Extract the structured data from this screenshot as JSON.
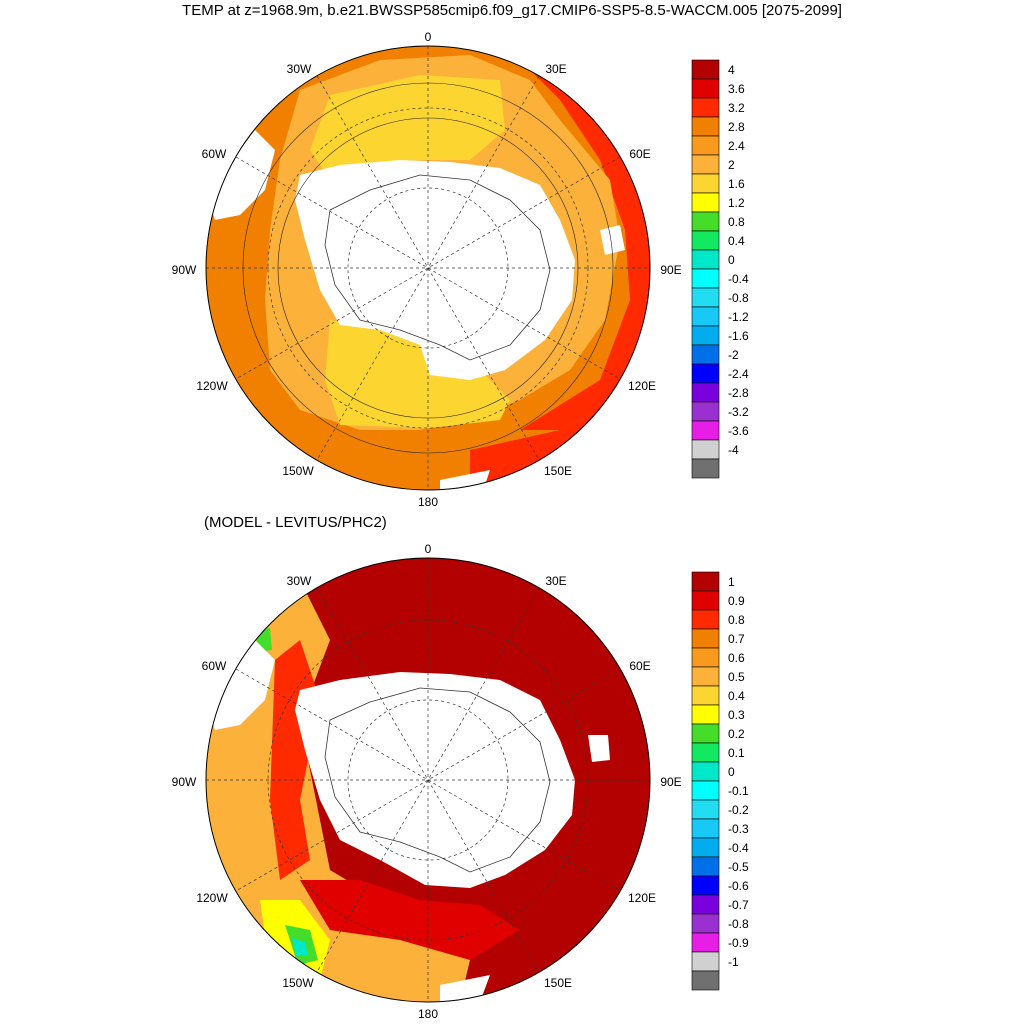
{
  "title": "TEMP at z=1968.9m, b.e21.BWSSP585cmip6.f09_g17.CMIP6-SSP5-8.5-WACCM.005 [2075-2099]",
  "subtitle": "(MODEL - LEVITUS/PHC2)",
  "longitude_labels": [
    "0",
    "30E",
    "60E",
    "90E",
    "120E",
    "150E",
    "180",
    "150W",
    "120W",
    "90W",
    "60W",
    "30W"
  ],
  "panel_top": {
    "colorbar_labels": [
      "4",
      "3.6",
      "3.2",
      "2.8",
      "2.4",
      "2",
      "1.6",
      "1.2",
      "0.8",
      "0.4",
      "0",
      "-0.4",
      "-0.8",
      "-1.2",
      "-1.6",
      "-2",
      "-2.4",
      "-2.8",
      "-3.2",
      "-3.6",
      "-4"
    ],
    "colors": [
      "#b30000",
      "#e00000",
      "#ff2a00",
      "#f28000",
      "#f99a1c",
      "#fbb13a",
      "#fdd530",
      "#ffff00",
      "#44dd2a",
      "#12e860",
      "#00e8c8",
      "#00ffff",
      "#22ddf2",
      "#18c8f6",
      "#00aef0",
      "#0070e8",
      "#0000ff",
      "#7a00dd",
      "#9b30d0",
      "#e61ee6",
      "#d0d0d0",
      "#707070"
    ]
  },
  "panel_bottom": {
    "colorbar_labels": [
      "1",
      "0.9",
      "0.8",
      "0.7",
      "0.6",
      "0.5",
      "0.4",
      "0.3",
      "0.2",
      "0.1",
      "0",
      "-0.1",
      "-0.2",
      "-0.3",
      "-0.4",
      "-0.5",
      "-0.6",
      "-0.7",
      "-0.8",
      "-0.9",
      "-1"
    ],
    "colors": [
      "#b30000",
      "#e00000",
      "#ff2a00",
      "#f28000",
      "#f99a1c",
      "#fbb13a",
      "#fdd530",
      "#ffff00",
      "#44dd2a",
      "#12e860",
      "#00e8c8",
      "#00ffff",
      "#22ddf2",
      "#18c8f6",
      "#00aef0",
      "#0070e8",
      "#0000ff",
      "#7a00dd",
      "#9b30d0",
      "#e61ee6",
      "#d0d0d0",
      "#707070"
    ]
  }
}
